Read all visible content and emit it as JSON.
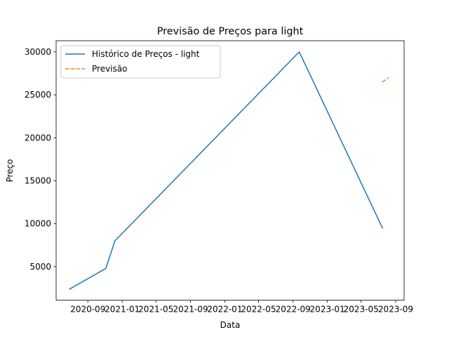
{
  "chart_data": {
    "type": "line",
    "title": "Previsão de Preços para light",
    "xlabel": "Data",
    "ylabel": "Preço",
    "grid": false,
    "legend_position": "top-left",
    "xlim": [
      "2020-05-11",
      "2023-10-01"
    ],
    "ylim": [
      1100,
      31300
    ],
    "x_ticks": [
      "2020-09",
      "2021-01",
      "2021-05",
      "2021-09",
      "2022-01",
      "2022-05",
      "2022-09",
      "2023-01",
      "2023-05",
      "2023-09"
    ],
    "x_tick_dates": [
      "2020-09-01",
      "2021-01-01",
      "2021-05-01",
      "2021-09-01",
      "2022-01-01",
      "2022-05-01",
      "2022-09-01",
      "2023-01-01",
      "2023-05-01",
      "2023-09-01"
    ],
    "y_ticks": [
      5000,
      10000,
      15000,
      20000,
      25000,
      30000
    ],
    "y_tick_labels": [
      "5000",
      "10000",
      "15000",
      "20000",
      "25000",
      "30000"
    ],
    "series": [
      {
        "name": "Histórico de Preços - light",
        "color": "#1f77b4",
        "style": "solid",
        "points": [
          {
            "x": "2020-06-28",
            "y": 2400
          },
          {
            "x": "2020-11-04",
            "y": 4800
          },
          {
            "x": "2020-12-06",
            "y": 8000
          },
          {
            "x": "2022-09-23",
            "y": 30000
          },
          {
            "x": "2023-07-16",
            "y": 9500
          }
        ]
      },
      {
        "name": "Previsão",
        "color": "#ff7f0e",
        "style": "dashed",
        "points": [
          {
            "x": "2023-07-16",
            "y": 26500
          },
          {
            "x": "2023-08-06",
            "y": 27000
          }
        ]
      }
    ]
  }
}
